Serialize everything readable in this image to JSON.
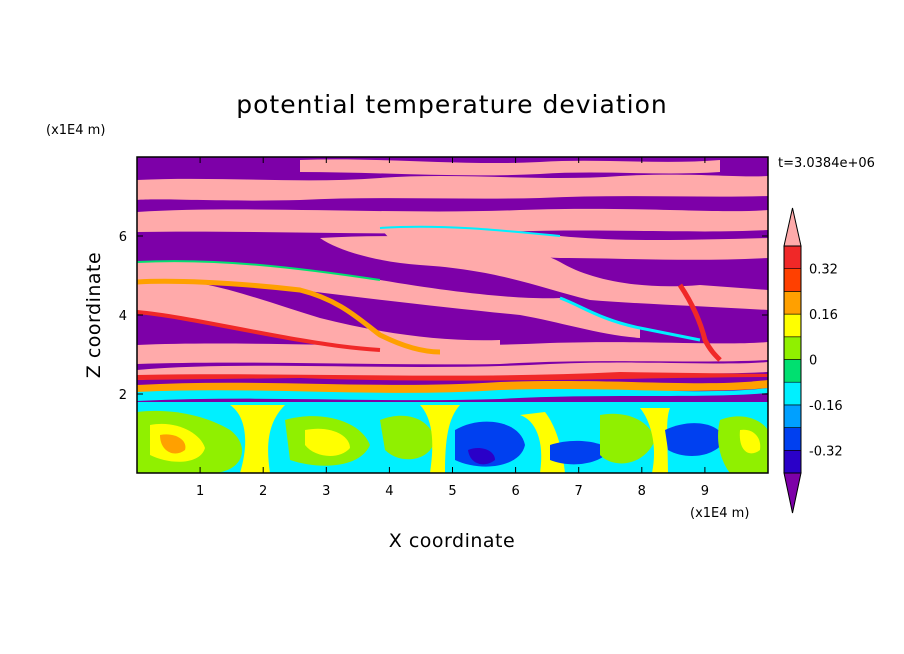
{
  "chart_data": {
    "type": "heatmap",
    "title": "potential temperature deviation",
    "xlabel": "X coordinate",
    "ylabel": "Z coordinate",
    "x_unit": "(x1E4 m)",
    "z_unit": "(x1E4 m)",
    "time_label": "t=3.0384e+06",
    "xlim": [
      0,
      10
    ],
    "zlim": [
      0,
      8
    ],
    "x_ticks": [
      "1",
      "2",
      "3",
      "4",
      "5",
      "6",
      "7",
      "8",
      "9"
    ],
    "z_ticks": [
      "2",
      "4",
      "6"
    ],
    "x_tick_values": [
      1,
      2,
      3,
      4,
      5,
      6,
      7,
      8,
      9
    ],
    "z_tick_values": [
      2,
      4,
      6
    ],
    "colorbar": {
      "levels_labels": [
        "0.32",
        "0.16",
        "0",
        "-0.16",
        "-0.32"
      ],
      "label_values": [
        0.32,
        0.16,
        0,
        -0.16,
        -0.32
      ],
      "bounds": [
        -0.4,
        -0.32,
        -0.24,
        -0.16,
        -0.08,
        0,
        0.08,
        0.16,
        0.24,
        0.32,
        0.4
      ],
      "colors": [
        "#7d00a8",
        "#2a00c8",
        "#0040f0",
        "#00a0ff",
        "#00f0ff",
        "#00e070",
        "#90f000",
        "#ffff00",
        "#ffa000",
        "#ff4000",
        "#f02828",
        "#ffaaaa"
      ],
      "over_color": "#ffaaaa",
      "under_color": "#7d00a8"
    }
  }
}
